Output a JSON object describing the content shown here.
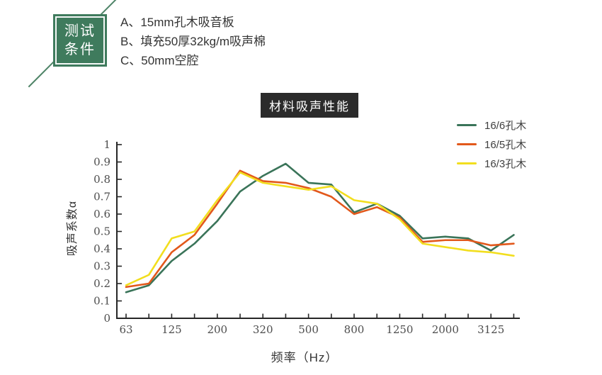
{
  "badge": {
    "line1": "测试",
    "line2": "条件"
  },
  "conditions": {
    "items": [
      "A、15mm孔木吸音板",
      "B、填充50厚32kg/m吸声棉",
      "C、50mm空腔"
    ]
  },
  "title_box": {
    "label": "材料吸声性能"
  },
  "colors": {
    "badge_green": "#3F7B5D",
    "accent_line": "#4E8467",
    "title_bg": "#2B2B2B",
    "axis": "#262626",
    "tick_label": "#4D4D4D"
  },
  "chart_data": {
    "type": "line",
    "title": "材料吸声性能",
    "xlabel": "频率（Hz）",
    "ylabel": "吸声系数α",
    "grid": false,
    "legend_position": "top-right",
    "ylim": [
      0,
      1
    ],
    "y_tick_labels": [
      "0",
      "0.1",
      "0.2",
      "0.3",
      "0.4",
      "0.5",
      "0.6",
      "0.7",
      "0.8",
      "0.9",
      "1"
    ],
    "x": [
      63,
      90,
      125,
      160,
      200,
      250,
      320,
      400,
      500,
      630,
      800,
      1000,
      1250,
      1600,
      2000,
      2500,
      3125,
      4000
    ],
    "x_tick_labels": [
      "63",
      "125",
      "200",
      "320",
      "500",
      "800",
      "1250",
      "2000",
      "3125"
    ],
    "series": [
      {
        "name": "16/6孔木",
        "color": "#3A7459",
        "values": [
          0.15,
          0.19,
          0.33,
          0.43,
          0.56,
          0.73,
          0.82,
          0.89,
          0.78,
          0.77,
          0.61,
          0.66,
          0.59,
          0.46,
          0.47,
          0.46,
          0.39,
          0.48
        ]
      },
      {
        "name": "16/5孔木",
        "color": "#E2581B",
        "values": [
          0.18,
          0.2,
          0.38,
          0.48,
          0.66,
          0.85,
          0.79,
          0.78,
          0.75,
          0.7,
          0.6,
          0.64,
          0.58,
          0.44,
          0.45,
          0.45,
          0.42,
          0.43
        ]
      },
      {
        "name": "16/3孔木",
        "color": "#F2DE1E",
        "values": [
          0.19,
          0.25,
          0.46,
          0.5,
          0.68,
          0.84,
          0.78,
          0.76,
          0.74,
          0.76,
          0.68,
          0.66,
          0.57,
          0.43,
          0.41,
          0.39,
          0.38,
          0.36
        ]
      }
    ]
  }
}
